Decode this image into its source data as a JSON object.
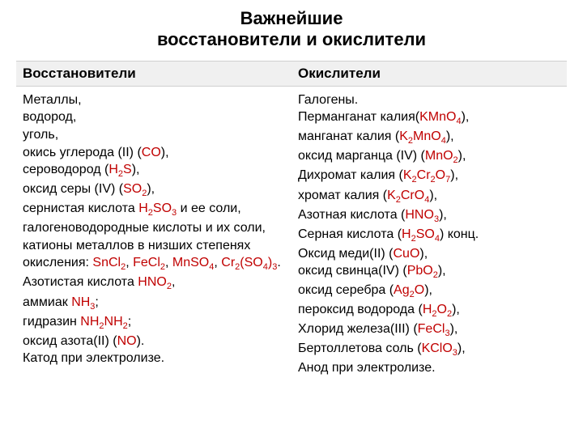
{
  "title_line1": "Важнейшие",
  "title_line2": "восстановители и окислители",
  "header_left": "Восстановители",
  "header_right": "Окислители",
  "colors": {
    "formula": "#c00000",
    "text": "#000000",
    "header_bg": "#f0f0f0",
    "header_border": "#d0d0d0",
    "background": "#ffffff"
  },
  "fontsize": {
    "title": 22,
    "header": 17,
    "body": 16,
    "sub": 11
  },
  "reducers": [
    {
      "t": "Металлы,"
    },
    {
      "t": "водород,"
    },
    {
      "t": "уголь,"
    },
    {
      "pre": "окись углерода (II) (",
      "f": "CO",
      "post": "),"
    },
    {
      "pre": "сероводород (",
      "f": "H2S",
      "post": "),"
    },
    {
      "pre": "оксид серы (IV) (",
      "f": "SO2",
      "post": "),"
    },
    {
      "pre": "сернистая кислота ",
      "f": "H2SO3",
      "post": " и ее соли,"
    },
    {
      "t": "галогеноводородные кислоты и их соли,"
    },
    {
      "t": "катионы металлов в низших степенях"
    },
    {
      "pre": "окисления: ",
      "multi": [
        {
          "f": "SnCl2"
        },
        {
          "t": ", "
        },
        {
          "f": "FeCl2"
        },
        {
          "t": ", "
        },
        {
          "f": "MnSO4"
        },
        {
          "t": ", "
        },
        {
          "f": "Cr2(SO4)3"
        },
        {
          "t": "."
        }
      ]
    },
    {
      "pre": "Азотистая кислота ",
      "f": "HNO2",
      "post": ","
    },
    {
      "pre": "аммиак ",
      "f": "NH3",
      "post": ";"
    },
    {
      "pre": "гидразин ",
      "f": "NH2NH2",
      "post": ";"
    },
    {
      "pre": "оксид азота(II) (",
      "f": "NO",
      "post": ")."
    },
    {
      "t": "Катод при электролизе."
    }
  ],
  "oxidizers": [
    {
      "t": "Галогены."
    },
    {
      "pre": "Перманганат калия(",
      "f": "KMnO4",
      "post": "),"
    },
    {
      "pre": "манганат калия (",
      "f": "K2MnO4",
      "post": "),"
    },
    {
      "pre": "оксид марганца (IV) (",
      "f": "MnO2",
      "post": "),"
    },
    {
      "pre": "Дихромат калия (",
      "f": "K2Cr2O7",
      "post": "),"
    },
    {
      "pre": "хромат калия (",
      "f": "K2CrO4",
      "post": "),"
    },
    {
      "pre": "Азотная кислота (",
      "f": "HNO3",
      "post": "),"
    },
    {
      "pre": "Серная кислота (",
      "f": "H2SO4",
      "post": ") конц."
    },
    {
      "pre": "Оксид меди(II) (",
      "f": "CuO",
      "post": "),"
    },
    {
      "pre": "оксид свинца(IV) (",
      "f": "PbO2",
      "post": "),"
    },
    {
      "pre": "оксид серебра (",
      "f": "Ag2O",
      "post": "),"
    },
    {
      "pre": "пероксид водорода (",
      "f": "H2O2",
      "post": "),"
    },
    {
      "pre": "Хлорид железа(III) (",
      "f": "FeCl3",
      "post": "),"
    },
    {
      "pre": "Бертоллетова соль (",
      "f": "KClO3",
      "post": "),"
    },
    {
      "t": "Анод при электролизе."
    }
  ]
}
